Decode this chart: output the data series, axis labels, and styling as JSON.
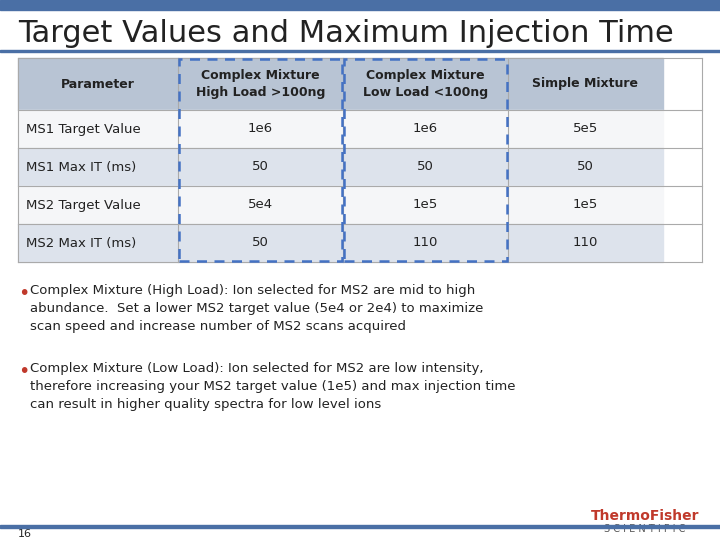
{
  "title": "Target Values and Maximum Injection Time",
  "title_fontsize": 22,
  "title_color": "#222222",
  "bg_color": "#ffffff",
  "header_bg": "#b8c4d4",
  "row_bg_alt": "#dde3ec",
  "row_bg_white": "#f5f6f8",
  "dashed_border_color": "#4472c4",
  "columns": [
    "Parameter",
    "Complex Mixture\nHigh Load >100ng",
    "Complex Mixture\nLow Load <100ng",
    "Simple Mixture"
  ],
  "rows": [
    [
      "MS1 Target Value",
      "1e6",
      "1e6",
      "5e5"
    ],
    [
      "MS1 Max IT (ms)",
      "50",
      "50",
      "50"
    ],
    [
      "MS2 Target Value",
      "5e4",
      "1e5",
      "1e5"
    ],
    [
      "MS2 Max IT (ms)",
      "50",
      "110",
      "110"
    ]
  ],
  "bullet1_title": "Complex Mixture (High Load):",
  "bullet1_text": " Ion selected for MS2 are mid to high\nabundance.  Set a lower MS2 target value (5e4 or 2e4) to maximize\nscan speed and increase number of MS2 scans acquired",
  "bullet2_title": "Complex Mixture (Low Load):",
  "bullet2_text": " Ion selected for MS2 are low intensity,\ntherefore increasing your MS2 target value (1e5) and max injection time\ncan result in higher quality spectra for low level ions",
  "bullet_color": "#c0392b",
  "text_color": "#222222",
  "page_num": "16",
  "top_bar_color": "#4a6fa5",
  "bottom_bar_color": "#4a6fa5",
  "thermo_red": "#c0392b",
  "thermo_gray": "#555555"
}
